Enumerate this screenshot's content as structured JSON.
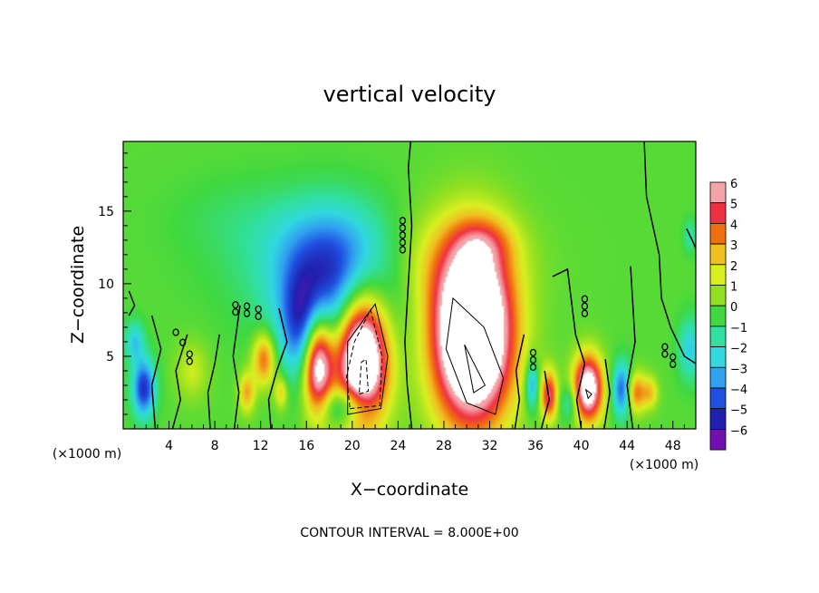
{
  "chart_data": {
    "type": "heatmap",
    "title": "vertical velocity",
    "xlabel": "X−coordinate",
    "ylabel": "Z−coordinate",
    "x_unit_label": "(×1000 m)",
    "x_unit_label_right": "(×1000 m)",
    "x_ticks": [
      "4",
      "8",
      "12",
      "16",
      "20",
      "24",
      "28",
      "32",
      "36",
      "40",
      "44",
      "48"
    ],
    "y_ticks": [
      "5",
      "10",
      "15"
    ],
    "xlim": [
      0,
      50
    ],
    "ylim": [
      0,
      19.8
    ],
    "footer": "CONTOUR INTERVAL = 8.000E+00",
    "colorbar": {
      "range": [
        -6,
        6
      ],
      "labels": [
        "6",
        "5",
        "4",
        "3",
        "2",
        "1",
        "0",
        "−1",
        "−2",
        "−3",
        "−4",
        "−5",
        "−6"
      ],
      "colors": [
        "#f4a3a8",
        "#f03040",
        "#f07010",
        "#f0c020",
        "#d8f020",
        "#90e020",
        "#40d840",
        "#30e0a0",
        "#30d8e0",
        "#30a0f0",
        "#2050e0",
        "#2020b0",
        "#7010b0"
      ]
    },
    "background_value": 0.3,
    "features": [
      {
        "label": "updraft",
        "x": 30.5,
        "z": 6.5,
        "sx": 2.4,
        "sz": 4.2,
        "value": 12
      },
      {
        "label": "updraft",
        "x": 20.8,
        "z": 5.0,
        "sx": 1.6,
        "sz": 3.2,
        "value": 11
      },
      {
        "label": "updraft",
        "x": 17.0,
        "z": 4.5,
        "sx": 0.9,
        "sz": 2.4,
        "value": 8
      },
      {
        "label": "updraft",
        "x": 40.6,
        "z": 2.8,
        "sx": 0.9,
        "sz": 1.6,
        "value": 8
      },
      {
        "label": "updraft",
        "x": 37.2,
        "z": 2.3,
        "sx": 0.5,
        "sz": 1.2,
        "value": 5
      },
      {
        "label": "updraft",
        "x": 44.7,
        "z": 2.5,
        "sx": 0.6,
        "sz": 1.0,
        "value": 4
      },
      {
        "label": "updraft",
        "x": 12.3,
        "z": 4.8,
        "sx": 0.7,
        "sz": 1.3,
        "value": 4
      },
      {
        "label": "updraft",
        "x": 10.8,
        "z": 2.5,
        "sx": 0.5,
        "sz": 1.0,
        "value": 3
      },
      {
        "label": "updraft",
        "x": 13.8,
        "z": 2.5,
        "sx": 0.4,
        "sz": 0.8,
        "value": 2.5
      },
      {
        "label": "updraft",
        "x": 6.0,
        "z": 4.0,
        "sx": 1.0,
        "sz": 1.4,
        "value": 1.5
      },
      {
        "label": "updraft",
        "x": 46.0,
        "z": 2.5,
        "sx": 0.5,
        "sz": 0.8,
        "value": 2.5
      },
      {
        "label": "updraft",
        "x": 28.0,
        "z": 11.5,
        "sx": 4.5,
        "sz": 2.5,
        "value": 1.5
      },
      {
        "label": "updraft",
        "x": 31.5,
        "z": 12.8,
        "sx": 1.8,
        "sz": 1.2,
        "value": 1.8
      },
      {
        "label": "downdraft",
        "x": 18.5,
        "z": 9.0,
        "sx": 3.5,
        "sz": 3.2,
        "value": -4
      },
      {
        "label": "downdraft",
        "x": 15.5,
        "z": 7.0,
        "sx": 1.2,
        "sz": 2.5,
        "value": -3
      },
      {
        "label": "downdraft",
        "x": 18.5,
        "z": 12.5,
        "sx": 3.5,
        "sz": 2.5,
        "value": -2
      },
      {
        "label": "downdraft",
        "x": 14.5,
        "z": 11.5,
        "sx": 5.0,
        "sz": 3.0,
        "value": -0.8
      },
      {
        "label": "downdraft",
        "x": 19.5,
        "z": 1.6,
        "sx": 1.5,
        "sz": 1.0,
        "value": -3.5
      },
      {
        "label": "downdraft",
        "x": 1.8,
        "z": 2.8,
        "sx": 0.7,
        "sz": 1.4,
        "value": -5
      },
      {
        "label": "downdraft",
        "x": 1.0,
        "z": 6.0,
        "sx": 0.6,
        "sz": 1.0,
        "value": -2.5
      },
      {
        "label": "downdraft",
        "x": 43.6,
        "z": 2.7,
        "sx": 0.6,
        "sz": 1.3,
        "value": -4.5
      },
      {
        "label": "downdraft",
        "x": 35.7,
        "z": 3.0,
        "sx": 0.4,
        "sz": 1.2,
        "value": -3.5
      },
      {
        "label": "downdraft",
        "x": 39.0,
        "z": 1.8,
        "sx": 0.6,
        "sz": 0.9,
        "value": -2
      },
      {
        "label": "downdraft",
        "x": 49.5,
        "z": 5.5,
        "sx": 0.7,
        "sz": 1.5,
        "value": -2.5
      },
      {
        "label": "downdraft",
        "x": 49.5,
        "z": 13.3,
        "sx": 0.4,
        "sz": 0.8,
        "value": -1.5
      },
      {
        "label": "downdraft",
        "x": 10.0,
        "z": 14.5,
        "sx": 4.0,
        "sz": 2.0,
        "value": -0.5
      }
    ],
    "contours": {
      "solid_zero": [
        [
          [
            25.2,
            0
          ],
          [
            24.8,
            3
          ],
          [
            24.6,
            6
          ],
          [
            24.9,
            10
          ],
          [
            25.2,
            14
          ],
          [
            24.9,
            18
          ],
          [
            25.1,
            19.8
          ]
        ],
        [
          [
            45.5,
            19.8
          ],
          [
            45.7,
            16
          ],
          [
            46.8,
            12
          ],
          [
            47.0,
            9
          ],
          [
            47.8,
            7
          ],
          [
            49.0,
            5
          ],
          [
            50.0,
            4.5
          ]
        ],
        [
          [
            0.5,
            9.5
          ],
          [
            1.0,
            8.5
          ],
          [
            0.5,
            7.8
          ]
        ],
        [
          [
            2.8,
            0
          ],
          [
            2.5,
            3
          ],
          [
            3.3,
            5.5
          ],
          [
            2.5,
            7.8
          ]
        ],
        [
          [
            4.3,
            0
          ],
          [
            5.0,
            2
          ],
          [
            4.6,
            4
          ],
          [
            5.6,
            6.5
          ]
        ],
        [
          [
            7.6,
            0
          ],
          [
            7.4,
            2.5
          ],
          [
            8.0,
            4.5
          ],
          [
            8.4,
            6.5
          ]
        ],
        [
          [
            9.7,
            0
          ],
          [
            10.1,
            2.5
          ],
          [
            9.6,
            5
          ],
          [
            10.2,
            8.5
          ]
        ],
        [
          [
            12.9,
            0
          ],
          [
            12.7,
            2
          ],
          [
            13.4,
            4
          ],
          [
            14.3,
            6
          ],
          [
            13.6,
            8.3
          ]
        ],
        [
          [
            34.2,
            0
          ],
          [
            34.6,
            2
          ],
          [
            34.3,
            4
          ],
          [
            35.0,
            6.5
          ]
        ],
        [
          [
            36.5,
            0
          ],
          [
            37.2,
            2
          ],
          [
            36.8,
            4
          ]
        ],
        [
          [
            40.0,
            0
          ],
          [
            39.6,
            2
          ],
          [
            40.3,
            4.5
          ],
          [
            39.5,
            6.5
          ],
          [
            38.8,
            11
          ],
          [
            37.5,
            10.5
          ]
        ],
        [
          [
            42.0,
            0
          ],
          [
            42.5,
            2.5
          ],
          [
            42.1,
            4.8
          ]
        ],
        [
          [
            44.5,
            0
          ],
          [
            44.0,
            3
          ],
          [
            44.7,
            6
          ],
          [
            44.3,
            11.2
          ]
        ],
        [
          [
            49.2,
            13.8
          ],
          [
            49.8,
            12.8
          ],
          [
            50.0,
            12.4
          ]
        ]
      ],
      "solid_positive": [
        [
          [
            28.8,
            9.0
          ],
          [
            31.5,
            7.0
          ],
          [
            33.2,
            3.5
          ],
          [
            32.5,
            1.0
          ],
          [
            30.0,
            1.8
          ],
          [
            28.2,
            5.5
          ]
        ],
        [
          [
            29.8,
            5.8
          ],
          [
            31.6,
            3.0
          ],
          [
            30.6,
            2.5
          ]
        ],
        [
          [
            19.6,
            1.0
          ],
          [
            22.5,
            1.4
          ],
          [
            23.1,
            5.0
          ],
          [
            22.0,
            8.6
          ],
          [
            19.6,
            6.0
          ]
        ],
        [
          [
            40.4,
            2.7
          ],
          [
            40.9,
            2.4
          ],
          [
            40.6,
            2.1
          ]
        ]
      ],
      "dashed_negative": [
        [
          [
            19.8,
            1.4
          ],
          [
            22.4,
            1.6
          ],
          [
            22.6,
            5.0
          ],
          [
            21.6,
            8.2
          ],
          [
            20.2,
            6.0
          ],
          [
            19.5,
            3.6
          ]
        ],
        [
          [
            20.6,
            2.4
          ],
          [
            21.4,
            2.6
          ],
          [
            21.2,
            4.8
          ],
          [
            20.8,
            4.6
          ]
        ]
      ],
      "chain_markers": [
        {
          "x": 24.4,
          "z_from": 11.8,
          "z_to": 14.6
        },
        {
          "x": 9.8,
          "z_from": 7.6,
          "z_to": 8.8
        },
        {
          "x": 10.8,
          "z_from": 7.5,
          "z_to": 8.7
        },
        {
          "x": 11.8,
          "z_from": 7.4,
          "z_to": 8.5
        },
        {
          "x": 4.6,
          "z_from": 6.0,
          "z_to": 6.9
        },
        {
          "x": 5.2,
          "z_from": 5.3,
          "z_to": 6.2
        },
        {
          "x": 5.8,
          "z_from": 4.4,
          "z_to": 5.4
        },
        {
          "x": 35.8,
          "z_from": 3.8,
          "z_to": 5.5
        },
        {
          "x": 40.3,
          "z_from": 7.4,
          "z_to": 9.2
        },
        {
          "x": 48.0,
          "z_from": 3.8,
          "z_to": 5.2
        },
        {
          "x": 47.3,
          "z_from": 4.8,
          "z_to": 5.9
        }
      ]
    }
  }
}
